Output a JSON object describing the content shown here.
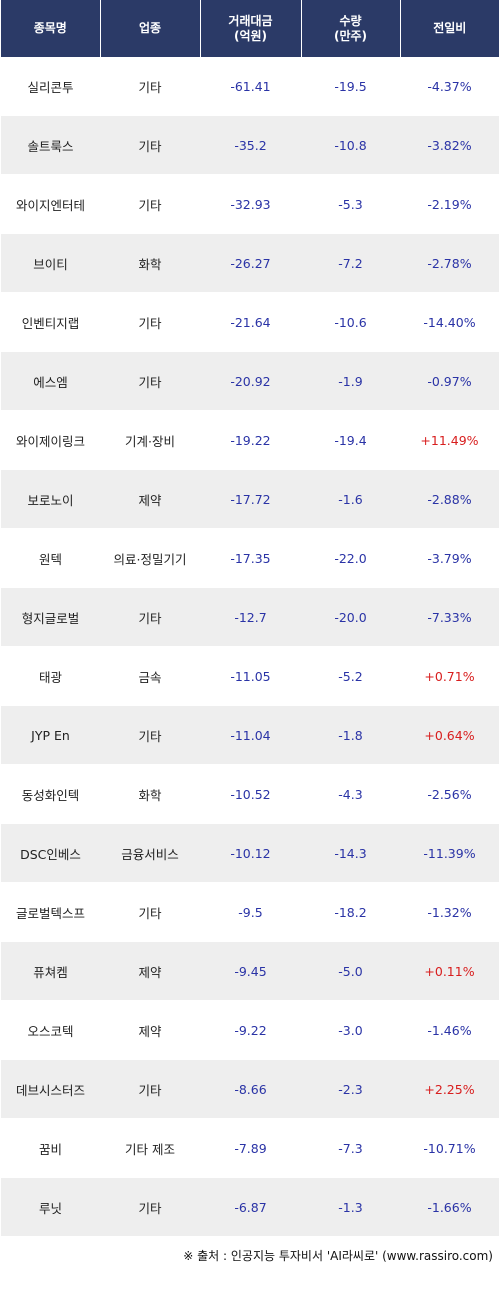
{
  "header": {
    "col1": "종목명",
    "col2": "업종",
    "col3_line1": "거래대금",
    "col3_line2": "(억원)",
    "col4_line1": "수량",
    "col4_line2": "(만주)",
    "col5": "전일비"
  },
  "rows": [
    {
      "name": "실리콘투",
      "sector": "기타",
      "amount": "-61.41",
      "qty": "-19.5",
      "change": "-4.37%",
      "up": false
    },
    {
      "name": "솔트룩스",
      "sector": "기타",
      "amount": "-35.2",
      "qty": "-10.8",
      "change": "-3.82%",
      "up": false
    },
    {
      "name": "와이지엔터테",
      "sector": "기타",
      "amount": "-32.93",
      "qty": "-5.3",
      "change": "-2.19%",
      "up": false
    },
    {
      "name": "브이티",
      "sector": "화학",
      "amount": "-26.27",
      "qty": "-7.2",
      "change": "-2.78%",
      "up": false
    },
    {
      "name": "인벤티지랩",
      "sector": "기타",
      "amount": "-21.64",
      "qty": "-10.6",
      "change": "-14.40%",
      "up": false
    },
    {
      "name": "에스엠",
      "sector": "기타",
      "amount": "-20.92",
      "qty": "-1.9",
      "change": "-0.97%",
      "up": false
    },
    {
      "name": "와이제이링크",
      "sector": "기계·장비",
      "amount": "-19.22",
      "qty": "-19.4",
      "change": "+11.49%",
      "up": true
    },
    {
      "name": "보로노이",
      "sector": "제약",
      "amount": "-17.72",
      "qty": "-1.6",
      "change": "-2.88%",
      "up": false
    },
    {
      "name": "원텍",
      "sector": "의료·정밀기기",
      "amount": "-17.35",
      "qty": "-22.0",
      "change": "-3.79%",
      "up": false
    },
    {
      "name": "형지글로벌",
      "sector": "기타",
      "amount": "-12.7",
      "qty": "-20.0",
      "change": "-7.33%",
      "up": false
    },
    {
      "name": "태광",
      "sector": "금속",
      "amount": "-11.05",
      "qty": "-5.2",
      "change": "+0.71%",
      "up": true
    },
    {
      "name": "JYP En",
      "sector": "기타",
      "amount": "-11.04",
      "qty": "-1.8",
      "change": "+0.64%",
      "up": true
    },
    {
      "name": "동성화인텍",
      "sector": "화학",
      "amount": "-10.52",
      "qty": "-4.3",
      "change": "-2.56%",
      "up": false
    },
    {
      "name": "DSC인베스",
      "sector": "금융서비스",
      "amount": "-10.12",
      "qty": "-14.3",
      "change": "-11.39%",
      "up": false
    },
    {
      "name": "글로벌텍스프",
      "sector": "기타",
      "amount": "-9.5",
      "qty": "-18.2",
      "change": "-1.32%",
      "up": false
    },
    {
      "name": "퓨쳐켐",
      "sector": "제약",
      "amount": "-9.45",
      "qty": "-5.0",
      "change": "+0.11%",
      "up": true
    },
    {
      "name": "오스코텍",
      "sector": "제약",
      "amount": "-9.22",
      "qty": "-3.0",
      "change": "-1.46%",
      "up": false
    },
    {
      "name": "데브시스터즈",
      "sector": "기타",
      "amount": "-8.66",
      "qty": "-2.3",
      "change": "+2.25%",
      "up": true
    },
    {
      "name": "꿈비",
      "sector": "기타 제조",
      "amount": "-7.89",
      "qty": "-7.3",
      "change": "-10.71%",
      "up": false
    },
    {
      "name": "루닛",
      "sector": "기타",
      "amount": "-6.87",
      "qty": "-1.3",
      "change": "-1.66%",
      "up": false
    }
  ],
  "footer": "※ 출처 : 인공지능 투자비서 'AI라씨로' (www.rassiro.com)",
  "colors": {
    "header_bg": "#2b3a67",
    "negative": "#2a33a6",
    "positive": "#d81e1e",
    "stripe": "#eeeeee"
  }
}
